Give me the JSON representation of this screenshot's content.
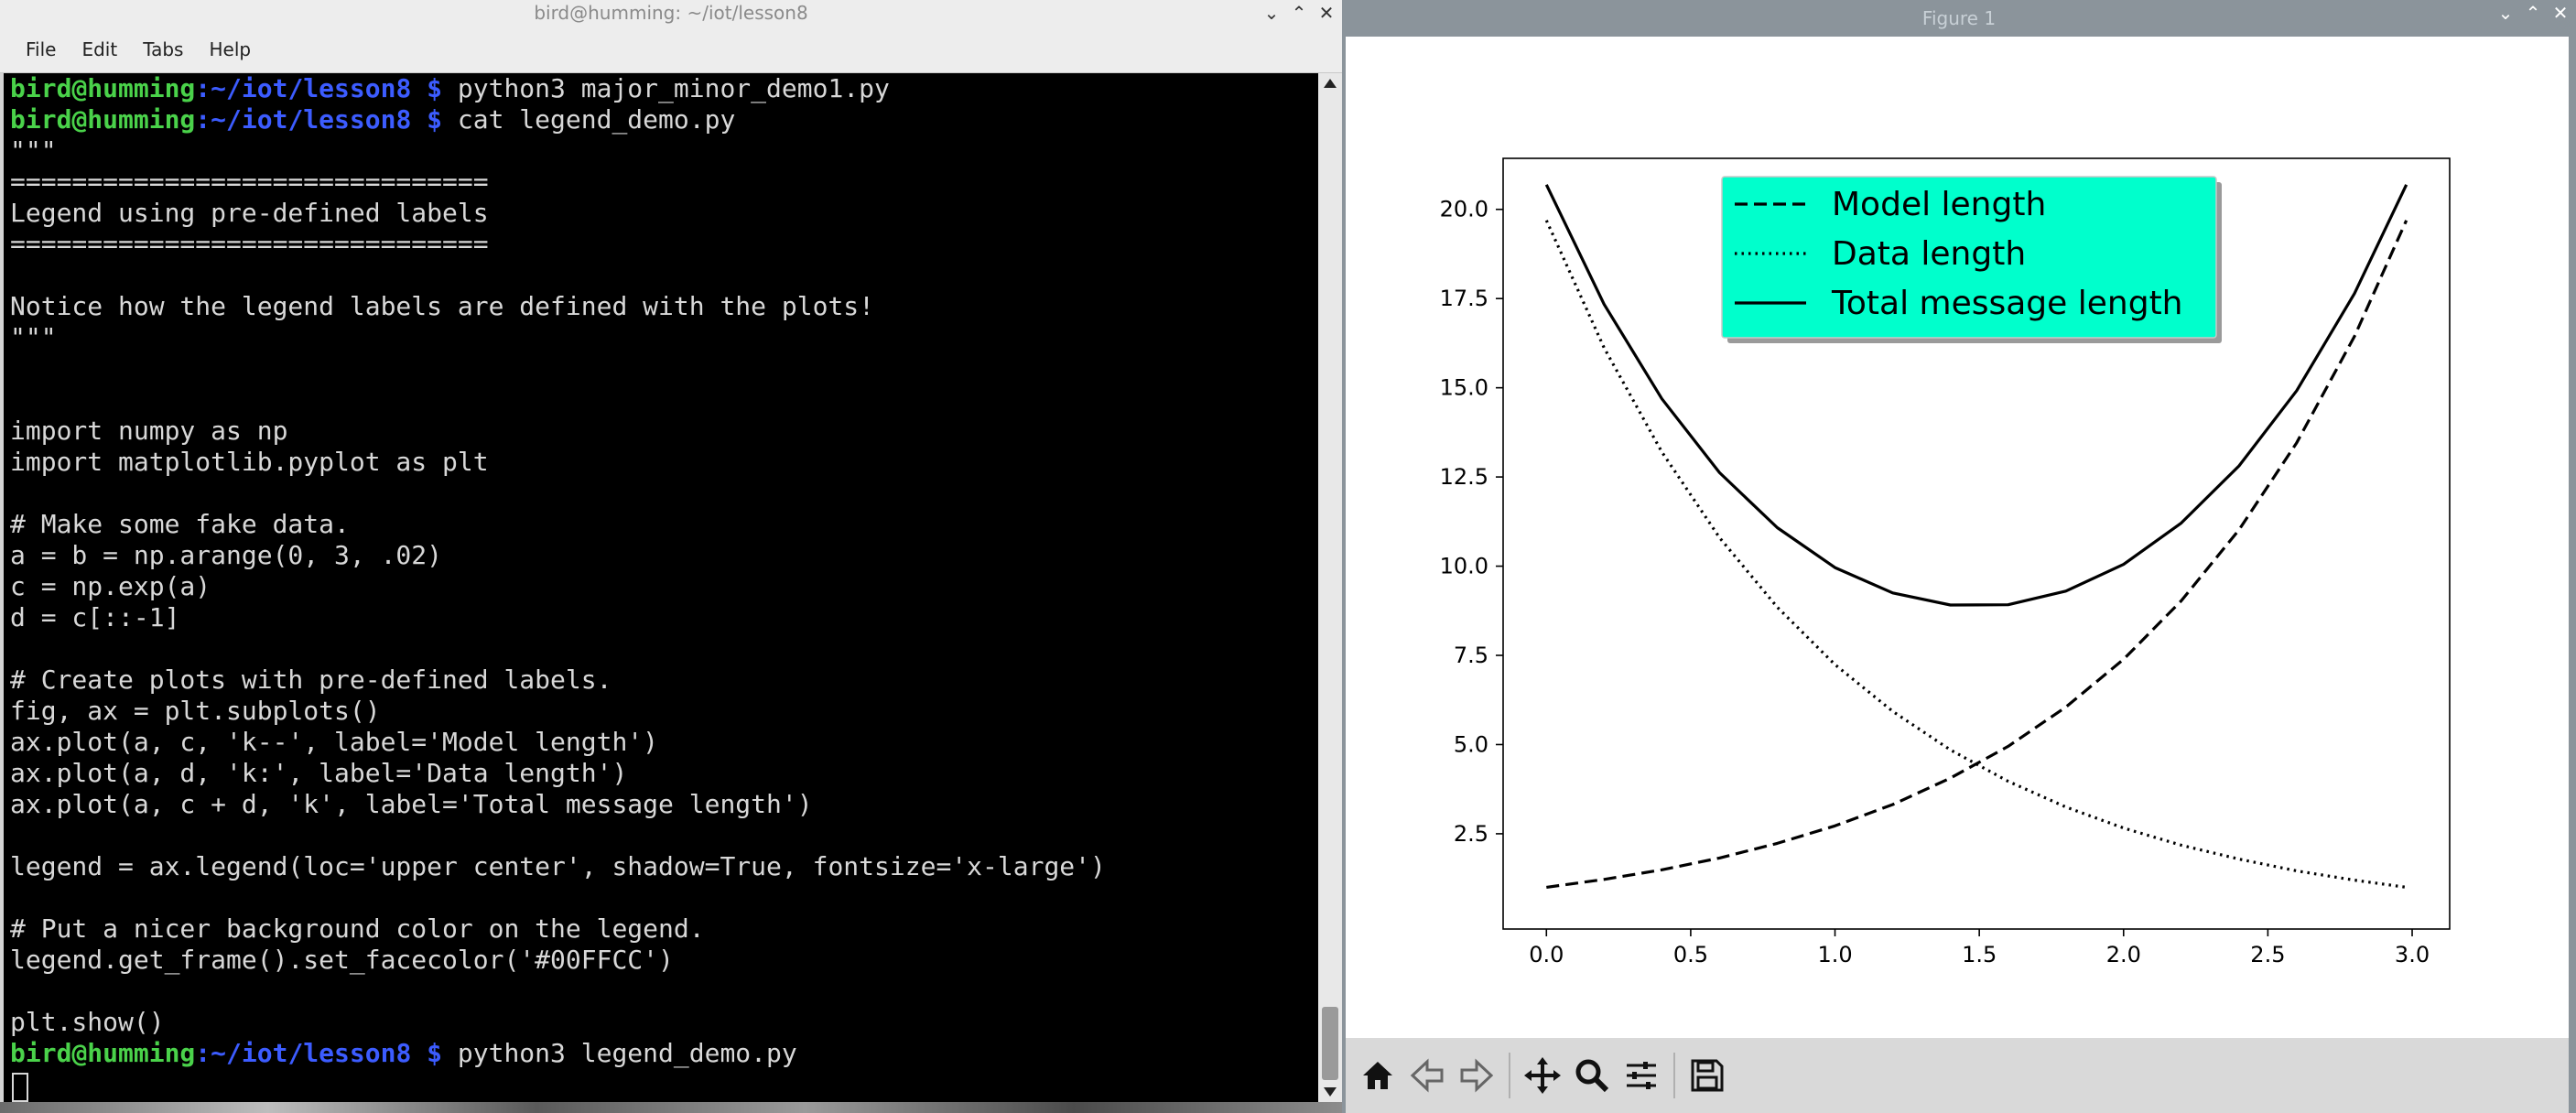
{
  "terminal": {
    "title": "bird@humming: ~/iot/lesson8",
    "menu": [
      "File",
      "Edit",
      "Tabs",
      "Help"
    ],
    "prompt": {
      "user": "bird@humming",
      "path": ":~/iot/lesson8 $",
      "suffix": " "
    },
    "lines": [
      {
        "kind": "prompt",
        "cmd": "python3 major_minor_demo1.py"
      },
      {
        "kind": "prompt",
        "cmd": "cat legend_demo.py"
      },
      {
        "kind": "text",
        "text": "\"\"\""
      },
      {
        "kind": "text",
        "text": "==============================="
      },
      {
        "kind": "text",
        "text": "Legend using pre-defined labels"
      },
      {
        "kind": "text",
        "text": "==============================="
      },
      {
        "kind": "text",
        "text": ""
      },
      {
        "kind": "text",
        "text": "Notice how the legend labels are defined with the plots!"
      },
      {
        "kind": "text",
        "text": "\"\"\""
      },
      {
        "kind": "text",
        "text": ""
      },
      {
        "kind": "text",
        "text": ""
      },
      {
        "kind": "text",
        "text": "import numpy as np"
      },
      {
        "kind": "text",
        "text": "import matplotlib.pyplot as plt"
      },
      {
        "kind": "text",
        "text": ""
      },
      {
        "kind": "text",
        "text": "# Make some fake data."
      },
      {
        "kind": "text",
        "text": "a = b = np.arange(0, 3, .02)"
      },
      {
        "kind": "text",
        "text": "c = np.exp(a)"
      },
      {
        "kind": "text",
        "text": "d = c[::-1]"
      },
      {
        "kind": "text",
        "text": ""
      },
      {
        "kind": "text",
        "text": "# Create plots with pre-defined labels."
      },
      {
        "kind": "text",
        "text": "fig, ax = plt.subplots()"
      },
      {
        "kind": "text",
        "text": "ax.plot(a, c, 'k--', label='Model length')"
      },
      {
        "kind": "text",
        "text": "ax.plot(a, d, 'k:', label='Data length')"
      },
      {
        "kind": "text",
        "text": "ax.plot(a, c + d, 'k', label='Total message length')"
      },
      {
        "kind": "text",
        "text": ""
      },
      {
        "kind": "text",
        "text": "legend = ax.legend(loc='upper center', shadow=True, fontsize='x-large')"
      },
      {
        "kind": "text",
        "text": ""
      },
      {
        "kind": "text",
        "text": "# Put a nicer background color on the legend."
      },
      {
        "kind": "text",
        "text": "legend.get_frame().set_facecolor('#00FFCC')"
      },
      {
        "kind": "text",
        "text": ""
      },
      {
        "kind": "text",
        "text": "plt.show()"
      },
      {
        "kind": "prompt",
        "cmd": "python3 legend_demo.py"
      }
    ]
  },
  "figure": {
    "title": "Figure 1",
    "toolbar": [
      "home-icon",
      "back-arrow-icon",
      "forward-arrow-icon",
      "move-icon",
      "zoom-icon",
      "configure-subplots-icon",
      "save-icon"
    ]
  },
  "chart_data": {
    "type": "line",
    "xlim": [
      -0.15,
      3.13
    ],
    "ylim": [
      -0.17,
      21.43
    ],
    "xticks": [
      0.0,
      0.5,
      1.0,
      1.5,
      2.0,
      2.5,
      3.0
    ],
    "xtick_labels": [
      "0.0",
      "0.5",
      "1.0",
      "1.5",
      "2.0",
      "2.5",
      "3.0"
    ],
    "yticks": [
      2.5,
      5.0,
      7.5,
      10.0,
      12.5,
      15.0,
      17.5,
      20.0
    ],
    "ytick_labels": [
      "2.5",
      "5.0",
      "7.5",
      "10.0",
      "12.5",
      "15.0",
      "17.5",
      "20.0"
    ],
    "x": [
      0.0,
      0.2,
      0.4,
      0.6,
      0.8,
      1.0,
      1.2,
      1.4,
      1.6,
      1.8,
      2.0,
      2.2,
      2.4,
      2.6,
      2.8,
      2.98
    ],
    "series": [
      {
        "name": "Model length",
        "style": "dashed",
        "values": [
          1.0,
          1.22,
          1.49,
          1.82,
          2.23,
          2.72,
          3.32,
          4.06,
          4.95,
          6.05,
          7.39,
          9.03,
          11.02,
          13.46,
          16.44,
          19.69
        ]
      },
      {
        "name": "Data length",
        "style": "dotted",
        "values": [
          19.69,
          16.12,
          13.2,
          10.8,
          8.85,
          7.24,
          5.93,
          4.85,
          3.97,
          3.25,
          2.66,
          2.18,
          1.79,
          1.46,
          1.2,
          1.0
        ]
      },
      {
        "name": "Total message length",
        "style": "solid",
        "values": [
          20.69,
          17.34,
          14.69,
          12.62,
          11.08,
          9.96,
          9.25,
          8.91,
          8.92,
          9.3,
          10.05,
          11.21,
          12.81,
          14.92,
          17.64,
          20.69
        ]
      }
    ],
    "legend": {
      "location": "upper center",
      "facecolor": "#00FFCC",
      "shadow": true
    },
    "grid": false
  }
}
